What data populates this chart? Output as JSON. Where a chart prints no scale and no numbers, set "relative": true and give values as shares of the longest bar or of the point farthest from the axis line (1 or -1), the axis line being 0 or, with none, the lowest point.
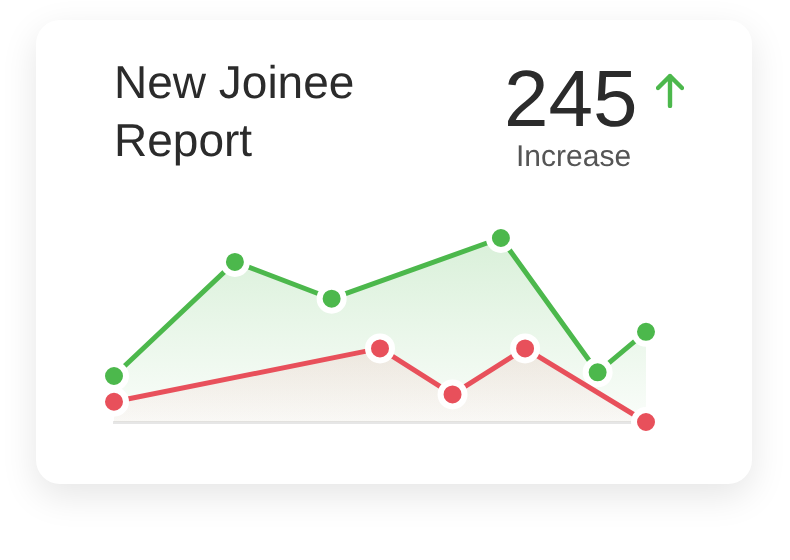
{
  "chart_data": {
    "type": "area",
    "title": "New Joinee Report",
    "relative": true,
    "marker": "circle",
    "legend": false,
    "annotations": [
      "245",
      "Increase"
    ],
    "categories": [
      null,
      null,
      null,
      null,
      null,
      null,
      null,
      null,
      null,
      null,
      null,
      null,
      null,
      null,
      null,
      null,
      null,
      null,
      null,
      null,
      null,
      null,
      null
    ],
    "series": [
      {
        "color": "#4cb84c",
        "values": [
          0.25,
          null,
          null,
          null,
          null,
          0.87,
          null,
          null,
          null,
          0.67,
          null,
          null,
          null,
          null,
          null,
          null,
          1,
          null,
          null,
          null,
          0.27,
          null,
          0.49
        ]
      },
      {
        "color": "#e8505b",
        "values": [
          0.11,
          null,
          null,
          null,
          null,
          null,
          null,
          null,
          null,
          null,
          null,
          0.4,
          null,
          null,
          0.15,
          null,
          null,
          0.4,
          null,
          null,
          null,
          null,
          0
        ]
      }
    ]
  }
}
